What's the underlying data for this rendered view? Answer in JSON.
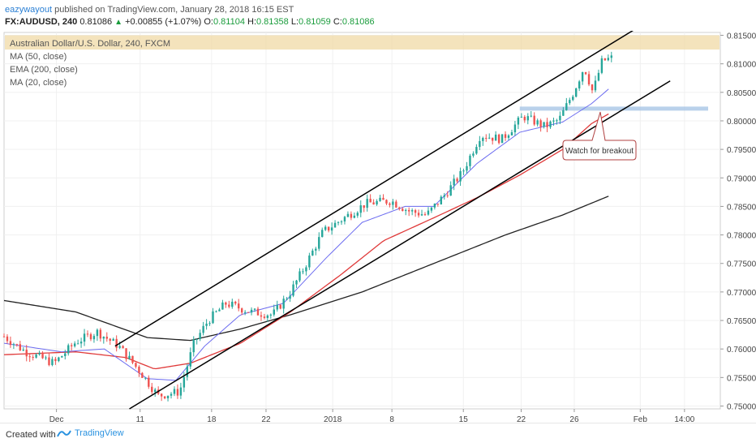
{
  "header": {
    "username": "eazywayout",
    "published_text": "published on TradingView.com, January 28, 2018 16:15 EST"
  },
  "quote": {
    "symbol": "FX:AUDUSD, 240",
    "last": "0.81086",
    "change": "+0.00855 (+1.07%)",
    "o_label": "O:",
    "o": "0.81104",
    "h_label": "H:",
    "h": "0.81358",
    "l_label": "L:",
    "l": "0.81059",
    "c_label": "C:",
    "c": "0.81086",
    "up_color": "#1a9c3c"
  },
  "legend": {
    "title": "Australian Dollar/U.S. Dollar, 240, FXCM",
    "ma50": "MA (50, close)",
    "ema200": "EMA (200, close)",
    "ma20": "MA (20, close)"
  },
  "annotation": {
    "text": "Watch for breakout"
  },
  "footer": {
    "created_with": "Created with",
    "brand": "TradingView"
  },
  "chart_data": {
    "type": "candlestick",
    "price_axis_ticks": [
      "0.81500",
      "0.81000",
      "0.80500",
      "0.80000",
      "0.79500",
      "0.79000",
      "0.78500",
      "0.78000",
      "0.77500",
      "0.77000",
      "0.76500",
      "0.76000",
      "0.75500",
      "0.75000"
    ],
    "time_axis_labels": [
      "Dec",
      "11",
      "18",
      "22",
      "2018",
      "8",
      "15",
      "22",
      "26",
      "Feb",
      "14:00"
    ],
    "ylim": [
      0.7495,
      0.8155
    ],
    "colors": {
      "up": "#26a69a",
      "down": "#ef5350",
      "ma50": "#e03a3a",
      "ema200": "#222222",
      "ma20": "#6b6bf0",
      "zone_top": "#f0d9a6",
      "zone_support": "#a8c6e6"
    },
    "price_path": [
      [
        0,
        0.7622
      ],
      [
        0.03,
        0.7595
      ],
      [
        0.07,
        0.7575
      ],
      [
        0.1,
        0.7612
      ],
      [
        0.13,
        0.763
      ],
      [
        0.16,
        0.7605
      ],
      [
        0.19,
        0.756
      ],
      [
        0.215,
        0.7518
      ],
      [
        0.245,
        0.7525
      ],
      [
        0.265,
        0.761
      ],
      [
        0.285,
        0.765
      ],
      [
        0.31,
        0.768
      ],
      [
        0.345,
        0.7665
      ],
      [
        0.375,
        0.766
      ],
      [
        0.4,
        0.77
      ],
      [
        0.42,
        0.7745
      ],
      [
        0.445,
        0.7805
      ],
      [
        0.475,
        0.783
      ],
      [
        0.505,
        0.7855
      ],
      [
        0.54,
        0.786
      ],
      [
        0.565,
        0.7842
      ],
      [
        0.59,
        0.7835
      ],
      [
        0.615,
        0.787
      ],
      [
        0.64,
        0.791
      ],
      [
        0.665,
        0.7975
      ],
      [
        0.695,
        0.7968
      ],
      [
        0.725,
        0.8008
      ],
      [
        0.755,
        0.799
      ],
      [
        0.775,
        0.8002
      ],
      [
        0.795,
        0.805
      ],
      [
        0.81,
        0.8095
      ],
      [
        0.822,
        0.805
      ],
      [
        0.835,
        0.8105
      ],
      [
        0.848,
        0.811
      ]
    ],
    "ma20_path": [
      [
        0,
        0.761
      ],
      [
        0.08,
        0.7595
      ],
      [
        0.14,
        0.76
      ],
      [
        0.2,
        0.7548
      ],
      [
        0.24,
        0.7545
      ],
      [
        0.28,
        0.7605
      ],
      [
        0.33,
        0.766
      ],
      [
        0.39,
        0.768
      ],
      [
        0.45,
        0.776
      ],
      [
        0.5,
        0.7822
      ],
      [
        0.56,
        0.785
      ],
      [
        0.6,
        0.785
      ],
      [
        0.66,
        0.7925
      ],
      [
        0.72,
        0.798
      ],
      [
        0.78,
        0.7998
      ],
      [
        0.82,
        0.803
      ],
      [
        0.848,
        0.806
      ]
    ],
    "ma50_path": [
      [
        0,
        0.759
      ],
      [
        0.1,
        0.7595
      ],
      [
        0.17,
        0.7585
      ],
      [
        0.21,
        0.7565
      ],
      [
        0.26,
        0.7575
      ],
      [
        0.33,
        0.761
      ],
      [
        0.4,
        0.7665
      ],
      [
        0.47,
        0.773
      ],
      [
        0.53,
        0.779
      ],
      [
        0.6,
        0.783
      ],
      [
        0.66,
        0.7865
      ],
      [
        0.72,
        0.7905
      ],
      [
        0.78,
        0.795
      ],
      [
        0.82,
        0.7995
      ],
      [
        0.848,
        0.8015
      ]
    ],
    "ema200_path": [
      [
        0,
        0.7685
      ],
      [
        0.1,
        0.7665
      ],
      [
        0.2,
        0.762
      ],
      [
        0.26,
        0.7615
      ],
      [
        0.33,
        0.7635
      ],
      [
        0.4,
        0.766
      ],
      [
        0.5,
        0.77
      ],
      [
        0.6,
        0.775
      ],
      [
        0.7,
        0.78
      ],
      [
        0.78,
        0.7835
      ],
      [
        0.848,
        0.787
      ]
    ],
    "channel_upper": [
      [
        0.155,
        0.7605
      ],
      [
        0.88,
        0.816
      ]
    ],
    "channel_lower": [
      [
        0.175,
        0.7495
      ],
      [
        0.93,
        0.807
      ]
    ],
    "resistance_zone": [
      0.8125,
      0.815
    ],
    "support_zone": [
      0.8018,
      0.8025
    ]
  }
}
